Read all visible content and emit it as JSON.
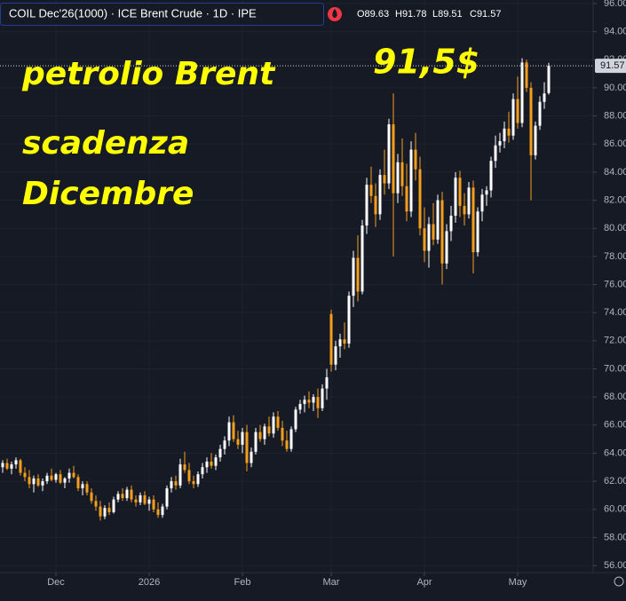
{
  "header": {
    "symbol": "COIL Dec'26(1000) · ICE Brent Crude · 1D · IPE",
    "ohlc": [
      "O89.63",
      "H91.78",
      "L89.51",
      "C91.57"
    ]
  },
  "chart_data": {
    "type": "candlestick",
    "annotations": [
      "petrolio Brent",
      "scadenza",
      "Dicembre",
      "91,5$"
    ],
    "up_color": "#ffffff",
    "down_color": "#f59e1b",
    "grid": true,
    "last_price": 91.57,
    "xlim": [
      -0.6,
      133
    ],
    "xticks": [
      {
        "value": 12,
        "label": "Dec"
      },
      {
        "value": 33,
        "label": "2026"
      },
      {
        "value": 54,
        "label": "Feb"
      },
      {
        "value": 74,
        "label": "Mar"
      },
      {
        "value": 95,
        "label": "Apr"
      },
      {
        "value": 116,
        "label": "May"
      }
    ],
    "ylim": [
      55.5,
      96.25
    ],
    "yticks": [
      {
        "value": 56,
        "label": "56.00"
      },
      {
        "value": 58,
        "label": "58.00"
      },
      {
        "value": 60,
        "label": "60.00"
      },
      {
        "value": 62,
        "label": "62.00"
      },
      {
        "value": 64,
        "label": "64.00"
      },
      {
        "value": 66,
        "label": "66.00"
      },
      {
        "value": 68,
        "label": "68.00"
      },
      {
        "value": 70,
        "label": "70.00"
      },
      {
        "value": 72,
        "label": "72.00"
      },
      {
        "value": 74,
        "label": "74.00"
      },
      {
        "value": 76,
        "label": "76.00"
      },
      {
        "value": 78,
        "label": "78.00"
      },
      {
        "value": 80,
        "label": "80.00"
      },
      {
        "value": 82,
        "label": "82.00"
      },
      {
        "value": 84,
        "label": "84.00"
      },
      {
        "value": 86,
        "label": "86.00"
      },
      {
        "value": 88,
        "label": "88.00"
      },
      {
        "value": 90,
        "label": "90.00"
      },
      {
        "value": 92,
        "label": "92.00"
      },
      {
        "value": 94,
        "label": "94.00"
      },
      {
        "value": 96,
        "label": "96.00"
      }
    ],
    "candles": [
      [
        63.0,
        63.5,
        62.6,
        63.3
      ],
      [
        63.3,
        63.6,
        62.8,
        62.9
      ],
      [
        62.9,
        63.4,
        62.5,
        63.2
      ],
      [
        63.2,
        63.7,
        62.9,
        63.5
      ],
      [
        63.5,
        63.6,
        62.4,
        62.6
      ],
      [
        62.6,
        63.0,
        62.0,
        62.3
      ],
      [
        62.3,
        62.8,
        61.5,
        61.8
      ],
      [
        61.8,
        62.4,
        61.2,
        62.2
      ],
      [
        62.2,
        62.5,
        61.6,
        61.7
      ],
      [
        61.7,
        62.2,
        61.3,
        62.0
      ],
      [
        62.0,
        62.6,
        61.8,
        62.4
      ],
      [
        62.4,
        62.9,
        62.0,
        62.1
      ],
      [
        62.1,
        62.6,
        61.9,
        62.5
      ],
      [
        62.5,
        62.8,
        61.8,
        61.9
      ],
      [
        61.9,
        62.3,
        61.5,
        62.2
      ],
      [
        62.2,
        62.9,
        61.9,
        62.6
      ],
      [
        62.6,
        63.1,
        62.2,
        62.3
      ],
      [
        62.3,
        62.5,
        61.3,
        61.5
      ],
      [
        61.5,
        62.0,
        61.0,
        61.8
      ],
      [
        61.8,
        62.0,
        61.0,
        61.2
      ],
      [
        61.2,
        61.5,
        60.4,
        60.6
      ],
      [
        60.6,
        61.0,
        59.9,
        60.2
      ],
      [
        60.2,
        60.6,
        59.2,
        59.5
      ],
      [
        59.5,
        60.3,
        59.3,
        60.1
      ],
      [
        60.1,
        60.5,
        59.6,
        59.8
      ],
      [
        59.8,
        60.9,
        59.7,
        60.7
      ],
      [
        60.7,
        61.3,
        60.5,
        61.1
      ],
      [
        61.1,
        61.5,
        60.6,
        60.8
      ],
      [
        60.8,
        61.6,
        60.6,
        61.4
      ],
      [
        61.4,
        61.7,
        60.5,
        60.7
      ],
      [
        60.7,
        61.0,
        60.2,
        60.5
      ],
      [
        60.5,
        61.2,
        60.3,
        61.0
      ],
      [
        61.0,
        61.3,
        60.3,
        60.4
      ],
      [
        60.4,
        60.9,
        59.9,
        60.7
      ],
      [
        60.7,
        61.0,
        59.8,
        60.0
      ],
      [
        60.0,
        60.5,
        59.4,
        59.6
      ],
      [
        59.6,
        60.4,
        59.4,
        60.2
      ],
      [
        60.2,
        61.7,
        60.0,
        61.5
      ],
      [
        61.5,
        62.3,
        61.2,
        62.0
      ],
      [
        62.0,
        62.4,
        61.4,
        61.7
      ],
      [
        61.7,
        63.6,
        61.5,
        63.2
      ],
      [
        63.2,
        64.1,
        62.6,
        62.8
      ],
      [
        62.8,
        63.3,
        61.8,
        62.0
      ],
      [
        62.0,
        62.4,
        61.5,
        61.8
      ],
      [
        61.8,
        62.7,
        61.6,
        62.5
      ],
      [
        62.5,
        63.3,
        62.2,
        63.0
      ],
      [
        63.0,
        63.7,
        62.6,
        63.4
      ],
      [
        63.4,
        64.0,
        62.9,
        63.1
      ],
      [
        63.1,
        63.9,
        62.8,
        63.7
      ],
      [
        63.7,
        64.6,
        63.4,
        64.3
      ],
      [
        64.3,
        65.2,
        63.9,
        64.9
      ],
      [
        64.9,
        66.6,
        64.5,
        66.2
      ],
      [
        66.2,
        66.7,
        64.8,
        65.0
      ],
      [
        65.0,
        65.6,
        64.3,
        64.6
      ],
      [
        64.6,
        65.8,
        64.0,
        65.5
      ],
      [
        65.5,
        66.0,
        62.7,
        63.3
      ],
      [
        63.3,
        64.4,
        63.0,
        64.1
      ],
      [
        64.1,
        65.8,
        63.9,
        65.5
      ],
      [
        65.5,
        66.0,
        64.8,
        65.0
      ],
      [
        65.0,
        66.1,
        64.6,
        65.9
      ],
      [
        65.9,
        66.6,
        65.2,
        65.4
      ],
      [
        65.4,
        66.9,
        65.1,
        66.6
      ],
      [
        66.6,
        67.0,
        65.6,
        65.8
      ],
      [
        65.8,
        66.3,
        64.5,
        64.9
      ],
      [
        64.9,
        65.6,
        64.1,
        64.3
      ],
      [
        64.3,
        65.9,
        64.1,
        65.7
      ],
      [
        65.7,
        67.3,
        65.5,
        67.1
      ],
      [
        67.1,
        67.8,
        66.8,
        67.5
      ],
      [
        67.5,
        68.1,
        66.9,
        67.8
      ],
      [
        67.8,
        68.4,
        67.2,
        67.6
      ],
      [
        67.6,
        68.2,
        67.0,
        68.0
      ],
      [
        68.0,
        68.6,
        66.5,
        67.2
      ],
      [
        67.2,
        68.9,
        67.0,
        68.6
      ],
      [
        68.6,
        70.0,
        67.8,
        69.4
      ],
      [
        73.9,
        74.2,
        69.8,
        70.3
      ],
      [
        70.3,
        72.0,
        69.9,
        71.6
      ],
      [
        71.6,
        72.5,
        70.8,
        72.1
      ],
      [
        72.1,
        73.3,
        71.4,
        71.8
      ],
      [
        71.8,
        75.5,
        71.5,
        75.2
      ],
      [
        75.2,
        78.4,
        74.4,
        77.9
      ],
      [
        77.9,
        79.5,
        74.8,
        75.5
      ],
      [
        75.5,
        80.6,
        75.3,
        80.2
      ],
      [
        80.2,
        83.6,
        79.6,
        83.1
      ],
      [
        83.1,
        84.4,
        81.8,
        82.3
      ],
      [
        82.3,
        83.2,
        80.1,
        81.0
      ],
      [
        81.0,
        84.2,
        80.6,
        83.8
      ],
      [
        83.8,
        85.6,
        82.4,
        83.2
      ],
      [
        83.2,
        87.8,
        82.8,
        87.4
      ],
      [
        87.4,
        89.6,
        78.0,
        82.5
      ],
      [
        82.5,
        85.3,
        81.8,
        84.7
      ],
      [
        84.7,
        86.4,
        82.3,
        83.0
      ],
      [
        83.0,
        84.6,
        80.5,
        81.2
      ],
      [
        81.2,
        86.2,
        80.8,
        85.6
      ],
      [
        85.6,
        86.8,
        83.4,
        84.2
      ],
      [
        84.2,
        85.1,
        79.5,
        80.0
      ],
      [
        80.0,
        81.5,
        77.6,
        78.4
      ],
      [
        78.4,
        80.8,
        77.2,
        80.3
      ],
      [
        80.3,
        81.8,
        78.8,
        79.2
      ],
      [
        79.2,
        82.4,
        78.9,
        82.0
      ],
      [
        82.0,
        82.6,
        76.0,
        77.5
      ],
      [
        77.5,
        80.3,
        77.1,
        79.8
      ],
      [
        79.8,
        81.6,
        79.1,
        80.9
      ],
      [
        80.9,
        84.0,
        80.4,
        83.6
      ],
      [
        83.6,
        84.1,
        80.8,
        81.6
      ],
      [
        81.6,
        82.5,
        80.2,
        81.0
      ],
      [
        81.0,
        83.3,
        80.7,
        82.9
      ],
      [
        82.9,
        83.4,
        76.8,
        78.3
      ],
      [
        78.3,
        81.5,
        78.0,
        81.2
      ],
      [
        81.2,
        82.8,
        80.5,
        82.4
      ],
      [
        82.4,
        83.0,
        81.6,
        82.7
      ],
      [
        82.7,
        85.1,
        82.2,
        84.8
      ],
      [
        84.8,
        86.6,
        84.3,
        85.9
      ],
      [
        85.9,
        86.8,
        85.4,
        86.2
      ],
      [
        86.2,
        87.6,
        85.7,
        87.1
      ],
      [
        87.1,
        88.3,
        86.1,
        86.6
      ],
      [
        86.6,
        89.6,
        86.3,
        89.2
      ],
      [
        89.2,
        90.8,
        87.1,
        87.5
      ],
      [
        87.5,
        92.1,
        87.2,
        91.8
      ],
      [
        91.8,
        92.0,
        89.7,
        90.0
      ],
      [
        90.0,
        90.4,
        82.0,
        85.2
      ],
      [
        85.2,
        87.6,
        84.9,
        87.3
      ],
      [
        87.3,
        89.4,
        87.0,
        89.0
      ],
      [
        89.0,
        90.4,
        88.5,
        89.6
      ],
      [
        89.63,
        91.78,
        89.51,
        91.57
      ]
    ]
  }
}
